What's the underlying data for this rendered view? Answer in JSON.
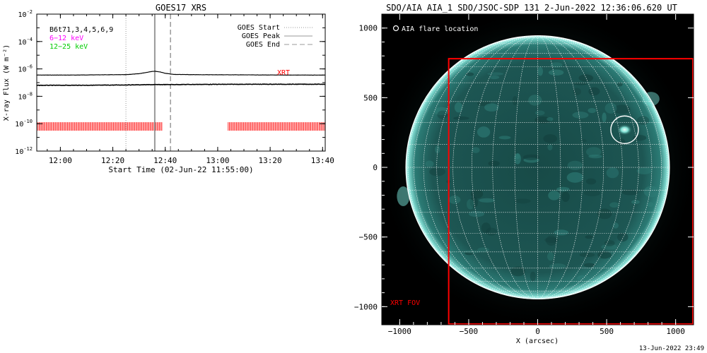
{
  "footer_timestamp": "13-Jun-2022 23:49",
  "chart_data": [
    {
      "type": "line",
      "title": "GOES17 XRS",
      "xlabel": "Start Time (02-Jun-22 11:55:00)",
      "ylabel": "X-ray Flux (W m⁻²)",
      "x_tick_labels": [
        "12:00",
        "12:20",
        "12:40",
        "13:00",
        "13:20",
        "13:40"
      ],
      "x_tick_minutes": [
        5,
        25,
        45,
        65,
        85,
        105
      ],
      "x_range_minutes": [
        -4,
        106
      ],
      "y_scale": "log",
      "y_tick_labels": [
        {
          "base": "10",
          "exp": "-2"
        },
        {
          "base": "10",
          "exp": "-4"
        },
        {
          "base": "10",
          "exp": "-6"
        },
        {
          "base": "10",
          "exp": "-8"
        },
        {
          "base": "10",
          "exp": "-10"
        },
        {
          "base": "10",
          "exp": "-12"
        }
      ],
      "y_tick_exponents": [
        -2,
        -4,
        -6,
        -8,
        -10,
        -12
      ],
      "y_range_exponent": [
        -2,
        -12
      ],
      "legend_upper_left": [
        {
          "text": "B6t71,3,4,5,6,9",
          "color": "#000000"
        },
        {
          "text": "6−12 keV",
          "color": "#ff00ff"
        },
        {
          "text": "12−25 keV",
          "color": "#00cc00"
        }
      ],
      "legend_upper_right": [
        {
          "text": "GOES Start",
          "style": "dotted"
        },
        {
          "text": "GOES Peak",
          "style": "solid"
        },
        {
          "text": "GOES End",
          "style": "dashed"
        }
      ],
      "goes_start_minute": 30,
      "goes_peak_minute": 41,
      "goes_end_minute": 47,
      "xrt_label": "XRT",
      "series": [
        {
          "x_minutes": [
            -4,
            10,
            20,
            30,
            35,
            38,
            40,
            41,
            43,
            45,
            48,
            55,
            70,
            90,
            106
          ],
          "log_flux": [
            -6.45,
            -6.45,
            -6.43,
            -6.42,
            -6.35,
            -6.25,
            -6.18,
            -6.17,
            -6.22,
            -6.32,
            -6.4,
            -6.42,
            -6.43,
            -6.45,
            -6.45
          ]
        },
        {
          "x_minutes": [
            -4,
            20,
            40,
            60,
            80,
            106
          ],
          "log_flux": [
            -7.2,
            -7.19,
            -7.15,
            -7.13,
            -7.12,
            -7.12
          ]
        }
      ],
      "xrt_coverage_minutes": [
        [
          -4,
          44
        ],
        [
          69,
          106
        ]
      ],
      "xrt_marker_level_exponent": -10.2
    },
    {
      "type": "heatmap",
      "title": "SDO/AIA AIA_1 SDO/JSOC-SDP 131  2-Jun-2022 12:36:06.620 UT",
      "xlabel": "X (arcsec)",
      "ylabel": "",
      "x_tick_labels": [
        "−1000",
        "−500",
        "0",
        "500",
        "1000"
      ],
      "y_tick_labels": [
        "1000",
        "500",
        "0",
        "−500",
        "−1000"
      ],
      "tick_values": [
        -1000,
        -500,
        0,
        500,
        1000
      ],
      "x_range": [
        -1130,
        1130
      ],
      "y_range": [
        -1130,
        1100
      ],
      "solar_radius_arcsec": 950,
      "grid_spacing_deg": 10,
      "legend_text": "AIA flare location",
      "flare_location_arcsec": [
        630,
        270
      ],
      "flare_circle_radius_arcsec": 100,
      "xrt_fov_label": "XRT FOV",
      "xrt_fov_arcsec": {
        "x": [
          -645,
          1130
        ],
        "y": [
          -1130,
          780
        ]
      },
      "colors": {
        "disk": "#1d5552",
        "limb": "#9fefe6",
        "corona": "#0b2c2a",
        "background": "#000000",
        "grid": "#ffffff",
        "fov": "#ff0000"
      }
    }
  ]
}
